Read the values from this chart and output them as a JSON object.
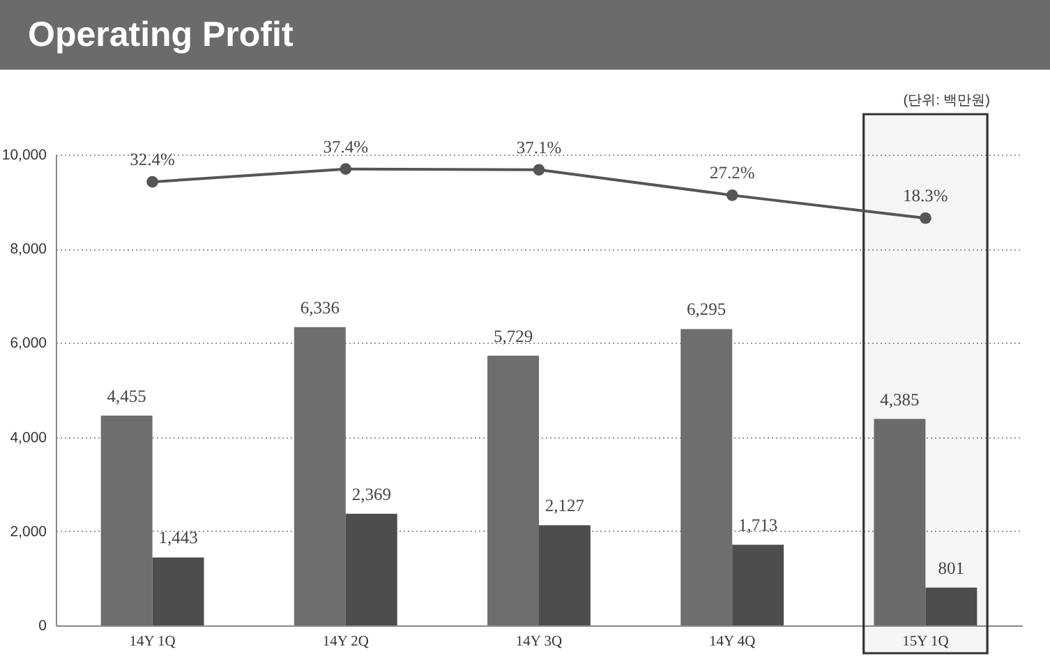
{
  "chart_data": {
    "type": "bar",
    "title": "Operating Profit",
    "categories": [
      "14Y 1Q",
      "14Y 2Q",
      "14Y 3Q",
      "14Y 4Q",
      "15Y 1Q"
    ],
    "series": [
      {
        "color": "#6e6e6e",
        "values": [
          4455,
          6336,
          5729,
          6295,
          4385
        ],
        "value_labels": [
          "4,455",
          "6,336",
          "5,729",
          "6,295",
          "4,385"
        ]
      },
      {
        "color": "#4d4d4d",
        "values": [
          1443,
          2369,
          2127,
          1713,
          801
        ],
        "value_labels": [
          "1,443",
          "2,369",
          "2,127",
          "1,713",
          "801"
        ]
      },
      {
        "type": "line",
        "axis": "y2",
        "color": "#555555",
        "values": [
          32.4,
          37.4,
          37.1,
          27.2,
          18.3
        ],
        "value_labels": [
          "32.4%",
          "37.4%",
          "37.1%",
          "27.2%",
          "18.3%"
        ]
      }
    ],
    "ylim": [
      0,
      10000
    ],
    "yticks": [
      0,
      {
        "value": 2000,
        "label": "2,000"
      },
      {
        "value": 4000,
        "label": "4,000"
      },
      {
        "value": 6000,
        "label": "6,000"
      },
      {
        "value": 8000,
        "label": "8,000"
      },
      {
        "value": 10000,
        "label": "10,000"
      }
    ],
    "y2lim": [
      -140,
      43
    ],
    "grid": "y",
    "marker": "circle",
    "annotations": [
      "(단위: 백만원)"
    ],
    "bands": [
      {
        "axis": "x",
        "from": "15Y 1Q",
        "to": "15Y 1Q",
        "color": "#333333"
      }
    ]
  }
}
